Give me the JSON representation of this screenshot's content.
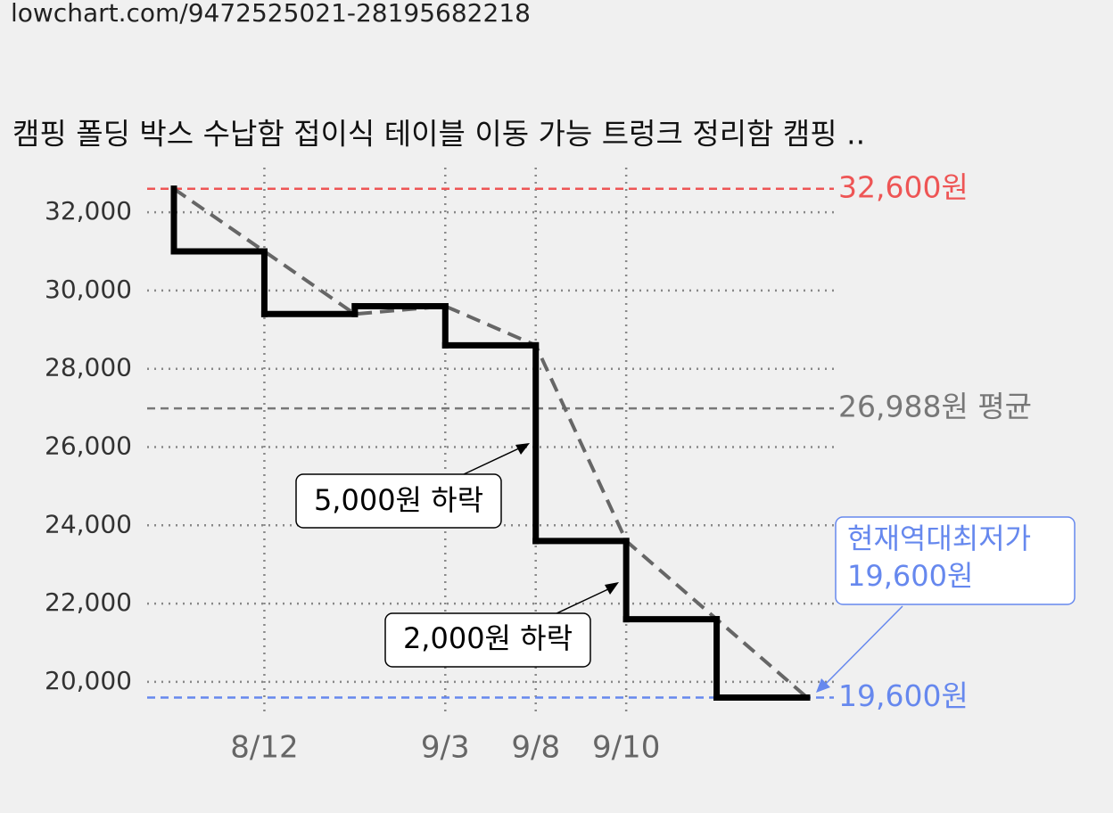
{
  "page": {
    "url": "lowchart.com/9472525021-28195682218"
  },
  "chart_data": {
    "type": "step",
    "title": "캠핑 폴딩 박스 수납함 접이식 테이블 이동 가능 트렁크 정리함 캠핑 ..",
    "categories": [
      null,
      "8/12",
      null,
      "9/3",
      "9/8",
      "9/10",
      null,
      null
    ],
    "series": [
      {
        "color": "#000000",
        "values": [
          32600,
          31000,
          29400,
          29600,
          28600,
          23600,
          21600,
          19600
        ]
      }
    ],
    "trend_color": "#666666",
    "ylim": [
      19200,
      32900
    ],
    "yticks": [
      {
        "value": 20000,
        "label": "20,000"
      },
      {
        "value": 22000,
        "label": "22,000"
      },
      {
        "value": 24000,
        "label": "24,000"
      },
      {
        "value": 26000,
        "label": "26,000"
      },
      {
        "value": 28000,
        "label": "28,000"
      },
      {
        "value": 30000,
        "label": "30,000"
      },
      {
        "value": 32000,
        "label": "32,000"
      }
    ],
    "reference_lines": [
      {
        "value": 32600,
        "label": "32,600원",
        "color": "#ee5555"
      },
      {
        "value": 26988,
        "label": "26,988원 평균",
        "color": "#777777"
      },
      {
        "value": 19600,
        "label": "19,600원",
        "color": "#6688ee"
      }
    ],
    "annotations": [
      {
        "text": "5,000원 하락"
      },
      {
        "text": "2,000원 하락"
      },
      {
        "lines": [
          "현재역대최저가",
          "19,600원"
        ],
        "color": "#6688ee"
      }
    ],
    "grid": true
  }
}
